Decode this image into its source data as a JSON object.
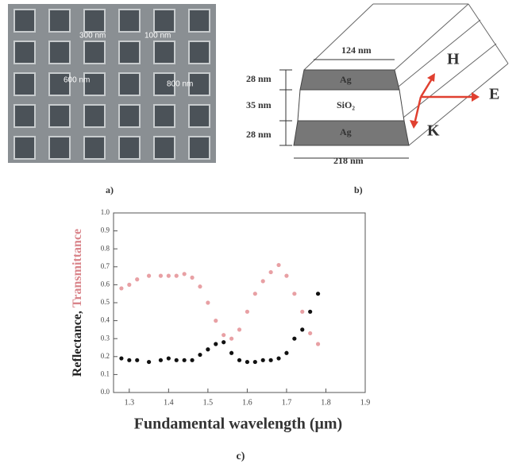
{
  "panel_a": {
    "labels": [
      "300 nm",
      "100 nm",
      "600 nm",
      "800 nm"
    ],
    "caption": "a)"
  },
  "panel_b": {
    "top_width": "124 nm",
    "bottom_width": "218 nm",
    "layer_thickness": [
      "28 nm",
      "35 nm",
      "28 nm"
    ],
    "layers": [
      "Ag",
      "SiO₂",
      "Ag"
    ],
    "fields": [
      "H",
      "E",
      "K"
    ],
    "caption": "b)"
  },
  "chart_data": {
    "type": "scatter",
    "caption": "c)",
    "xlabel": "Fundamental wavelength (μm)",
    "ylabel_parts": [
      {
        "text": "Reflectance,",
        "color": "#222222"
      },
      {
        "text": "Transmittance",
        "color": "#d9848a"
      }
    ],
    "x": [
      1.28,
      1.3,
      1.32,
      1.35,
      1.38,
      1.4,
      1.42,
      1.44,
      1.46,
      1.48,
      1.5,
      1.52,
      1.54,
      1.56,
      1.58,
      1.6,
      1.62,
      1.64,
      1.66,
      1.68,
      1.7,
      1.72,
      1.74,
      1.76,
      1.78
    ],
    "series": [
      {
        "color": "#e8a0a4",
        "values": [
          0.58,
          0.6,
          0.63,
          0.65,
          0.65,
          0.65,
          0.65,
          0.66,
          0.64,
          0.59,
          0.5,
          0.4,
          0.32,
          0.3,
          0.35,
          0.45,
          0.55,
          0.62,
          0.67,
          0.71,
          0.65,
          0.55,
          0.45,
          0.33,
          0.27
        ]
      },
      {
        "color": "#111111",
        "values": [
          0.19,
          0.18,
          0.18,
          0.17,
          0.18,
          0.19,
          0.18,
          0.18,
          0.18,
          0.21,
          0.24,
          0.27,
          0.28,
          0.22,
          0.18,
          0.17,
          0.17,
          0.18,
          0.18,
          0.19,
          0.22,
          0.3,
          0.35,
          0.45,
          0.55
        ]
      }
    ],
    "xlim": [
      1.26,
      1.9
    ],
    "xticks": [
      1.3,
      1.4,
      1.5,
      1.6,
      1.7,
      1.8,
      1.9
    ],
    "ylim": [
      0,
      1.0
    ],
    "yticks": [
      {
        "value": 0,
        "label": "0.0"
      },
      0.1,
      0.2,
      0.3,
      0.4,
      0.5,
      0.6,
      0.7,
      0.8,
      0.9,
      {
        "value": 1,
        "label": "1.0"
      }
    ]
  }
}
